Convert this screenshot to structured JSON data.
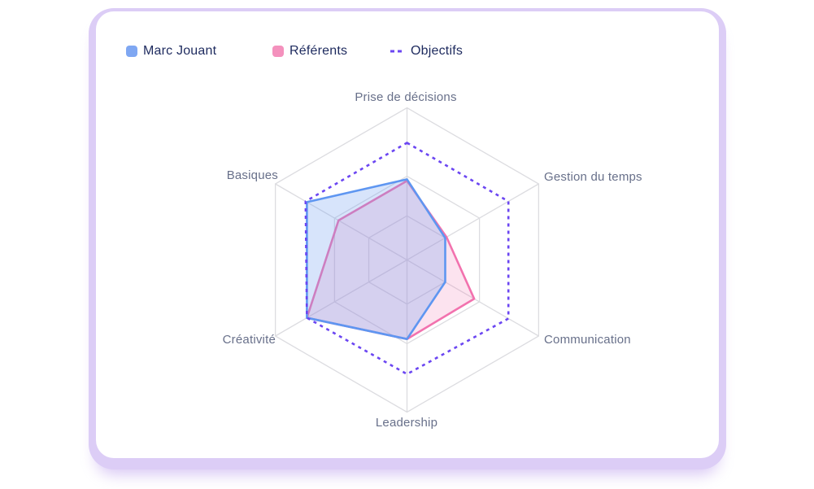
{
  "legend": {
    "items": [
      {
        "label": "Marc Jouant",
        "color": "#7fa7f2",
        "marker": "square"
      },
      {
        "label": "Référents",
        "color": "#f491bd",
        "marker": "square"
      },
      {
        "label": "Objectifs",
        "color": "#6b46f2",
        "marker": "dashed-line"
      }
    ]
  },
  "chart_data": {
    "type": "radar",
    "title": "",
    "categories": [
      "Prise de décisions",
      "Gestion du temps",
      "Communication",
      "Leadership",
      "Créativité",
      "Basiques"
    ],
    "series": [
      {
        "name": "Marc Jouant",
        "values": [
          53,
          29,
          29,
          52,
          76,
          76
        ],
        "stroke": "#5e96f1",
        "fill": "rgba(111,159,241,0.28)",
        "line_style": "solid",
        "z": 2
      },
      {
        "name": "Référents",
        "values": [
          52,
          30,
          51,
          52,
          76,
          52
        ],
        "stroke": "#f272ae",
        "fill": "rgba(242,114,174,0.20)",
        "line_style": "solid",
        "z": 1
      },
      {
        "name": "Objectifs",
        "values": [
          77,
          77,
          77,
          75,
          76,
          77
        ],
        "stroke": "#6b46f2",
        "fill": "none",
        "line_style": "dashed",
        "z": 3
      }
    ],
    "scale": {
      "min": 0,
      "max": 100,
      "grid_levels": [
        29,
        55,
        100
      ]
    },
    "grid_color": "#dcdce0",
    "axis_label_color": "#68708a",
    "legend_position": "top-left"
  }
}
